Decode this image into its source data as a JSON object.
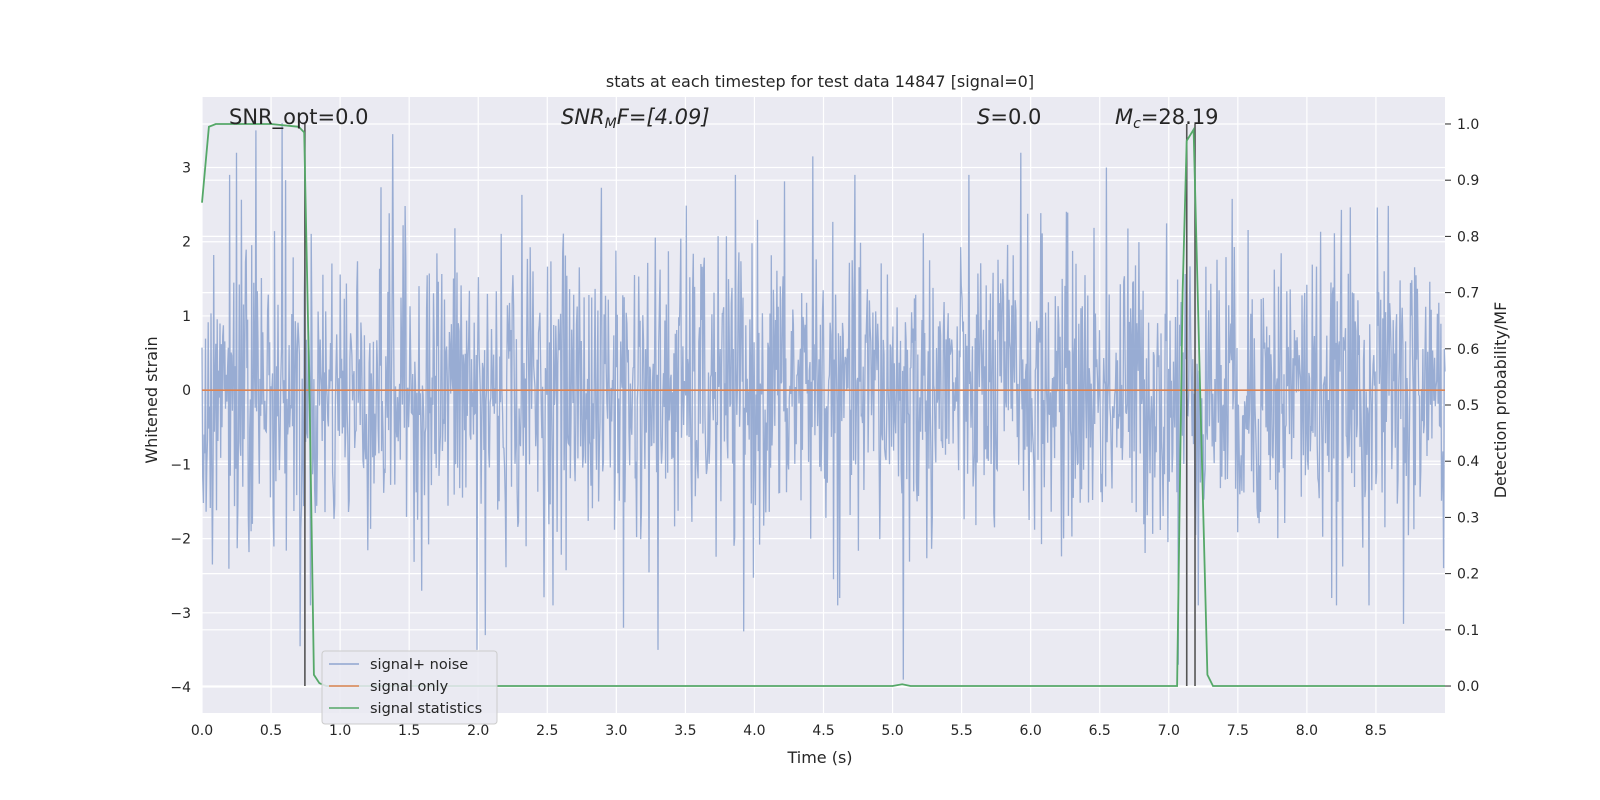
{
  "chart_data": {
    "type": "line",
    "title": "stats at each timestep for test data 14847 [signal=0]",
    "xlabel": "Time (s)",
    "ylabel": "Whitened strain",
    "y2label": "Detection probability/MF",
    "xlim": [
      0,
      9.0
    ],
    "ylim": [
      -4.35,
      3.95
    ],
    "y2lim": [
      -0.048,
      1.048
    ],
    "x_ticks": [
      "0.0",
      "0.5",
      "1.0",
      "1.5",
      "2.0",
      "2.5",
      "3.0",
      "3.5",
      "4.0",
      "4.5",
      "5.0",
      "5.5",
      "6.0",
      "6.5",
      "7.0",
      "7.5",
      "8.0",
      "8.5"
    ],
    "y_ticks": [
      "−4",
      "−3",
      "−2",
      "−1",
      "0",
      "1",
      "2",
      "3"
    ],
    "y2_ticks": [
      "0.0",
      "0.1",
      "0.2",
      "0.3",
      "0.4",
      "0.5",
      "0.6",
      "0.7",
      "0.8",
      "0.9",
      "1.0"
    ],
    "grid": true,
    "legend_placement": "lower-left",
    "annotations": {
      "snr_opt": "SNR_opt=0.0",
      "snr_mf_name": "SNR",
      "snr_mf_sub": "M",
      "snr_mf_rest": "F=[4.09]",
      "s_name": "S",
      "s_rest": "=0.0",
      "mc_name": "M",
      "mc_sub": "c",
      "mc_rest": "=28.19"
    },
    "series": [
      {
        "name": "signal+ noise",
        "color": "#8fa5cf",
        "description_values": "whitened noise, roughly gaussian; typical range -2 to 2, peaks between -3.7 and 3.6",
        "peaks": [
          [
            0.25,
            3.2
          ],
          [
            0.39,
            3.5
          ],
          [
            0.58,
            3.6
          ],
          [
            0.71,
            -3.45
          ],
          [
            1.38,
            3.45
          ],
          [
            1.99,
            -3.5
          ],
          [
            2.05,
            -3.3
          ],
          [
            3.05,
            -3.2
          ],
          [
            3.3,
            -3.5
          ],
          [
            3.92,
            -3.25
          ],
          [
            4.42,
            3.15
          ],
          [
            4.62,
            -2.8
          ],
          [
            5.08,
            -3.9
          ],
          [
            5.93,
            3.2
          ],
          [
            6.55,
            3.0
          ],
          [
            7.07,
            -3.7
          ],
          [
            8.18,
            -2.8
          ],
          [
            8.7,
            -3.15
          ]
        ],
        "sample_count": 1800
      },
      {
        "name": "signal only",
        "color": "#dd8452",
        "x": [
          0,
          9.0
        ],
        "y": [
          0,
          0
        ]
      },
      {
        "name": "signal statistics",
        "color": "#55a868",
        "axis": "right",
        "x": [
          0,
          0.05,
          0.1,
          0.2,
          0.5,
          0.7,
          0.74,
          0.78,
          0.81,
          0.85,
          0.9,
          1.0,
          5.0,
          5.07,
          5.13,
          7.06,
          7.1,
          7.13,
          7.18,
          7.23,
          7.28,
          7.32,
          9.0
        ],
        "y": [
          0.86,
          0.995,
          1.0,
          1.0,
          1.0,
          0.995,
          0.985,
          0.5,
          0.02,
          0.005,
          0.0,
          0.0,
          0.0,
          0.003,
          0.0,
          0.0,
          0.7,
          0.97,
          0.99,
          0.5,
          0.02,
          0.0,
          0.0
        ]
      }
    ],
    "vlines": [
      {
        "x": 0.745,
        "y2_from": 0.0,
        "y2_to": 1.0,
        "color": "#555555"
      },
      {
        "x": 7.13,
        "y2_from": 0.0,
        "y2_to": 1.0,
        "color": "#555555"
      },
      {
        "x": 7.19,
        "y2_from": 0.0,
        "y2_to": 1.0,
        "color": "#555555"
      }
    ],
    "background": "#eaeaf2"
  }
}
